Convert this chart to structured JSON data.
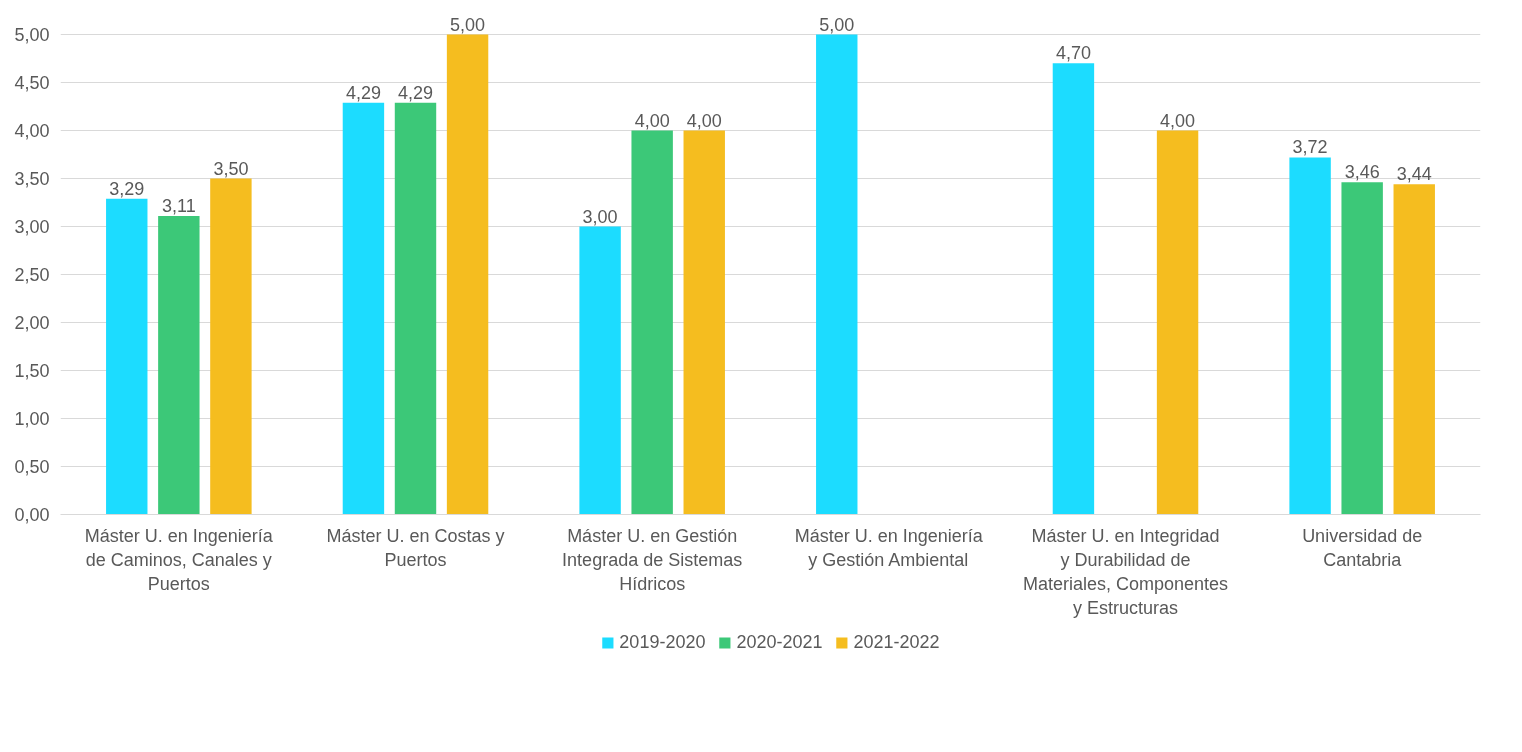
{
  "chart_data": {
    "type": "bar",
    "categories": [
      "Máster U. en Ingeniería de Caminos, Canales y Puertos",
      "Máster U. en Costas y Puertos",
      "Máster U. en Gestión Integrada de Sistemas Hídricos",
      "Máster U. en Ingeniería y Gestión Ambiental",
      "Máster U. en Integridad y Durabilidad de Materiales, Componentes y Estructuras",
      "Universidad de Cantabria"
    ],
    "series": [
      {
        "name": "2019-2020",
        "color": "#1cdcff",
        "values": [
          3.29,
          4.29,
          3.0,
          5.0,
          4.7,
          3.72
        ],
        "value_labels": [
          "3,29",
          "4,29",
          "3,00",
          "5,00",
          "4,70",
          "3,72"
        ]
      },
      {
        "name": "2020-2021",
        "color": "#3cc878",
        "values": [
          3.11,
          4.29,
          4.0,
          null,
          null,
          3.46
        ],
        "value_labels": [
          "3,11",
          "4,29",
          "4,00",
          null,
          null,
          "3,46"
        ]
      },
      {
        "name": "2021-2022",
        "color": "#f5bd1f",
        "values": [
          3.5,
          5.0,
          4.0,
          null,
          4.0,
          3.44
        ],
        "value_labels": [
          "3,50",
          "5,00",
          "4,00",
          null,
          "4,00",
          "3,44"
        ]
      }
    ],
    "ylim": [
      0,
      5
    ],
    "yticks": [
      {
        "value": 0,
        "label": "0,00"
      },
      {
        "value": 0.5,
        "label": "0,50"
      },
      {
        "value": 1,
        "label": "1,00"
      },
      {
        "value": 1.5,
        "label": "1,50"
      },
      {
        "value": 2,
        "label": "2,00"
      },
      {
        "value": 2.5,
        "label": "2,50"
      },
      {
        "value": 3,
        "label": "3,00"
      },
      {
        "value": 3.5,
        "label": "3,50"
      },
      {
        "value": 4,
        "label": "4,00"
      },
      {
        "value": 4.5,
        "label": "4,50"
      },
      {
        "value": 5,
        "label": "5,00"
      }
    ],
    "grid": "y",
    "legend": "bottom"
  }
}
